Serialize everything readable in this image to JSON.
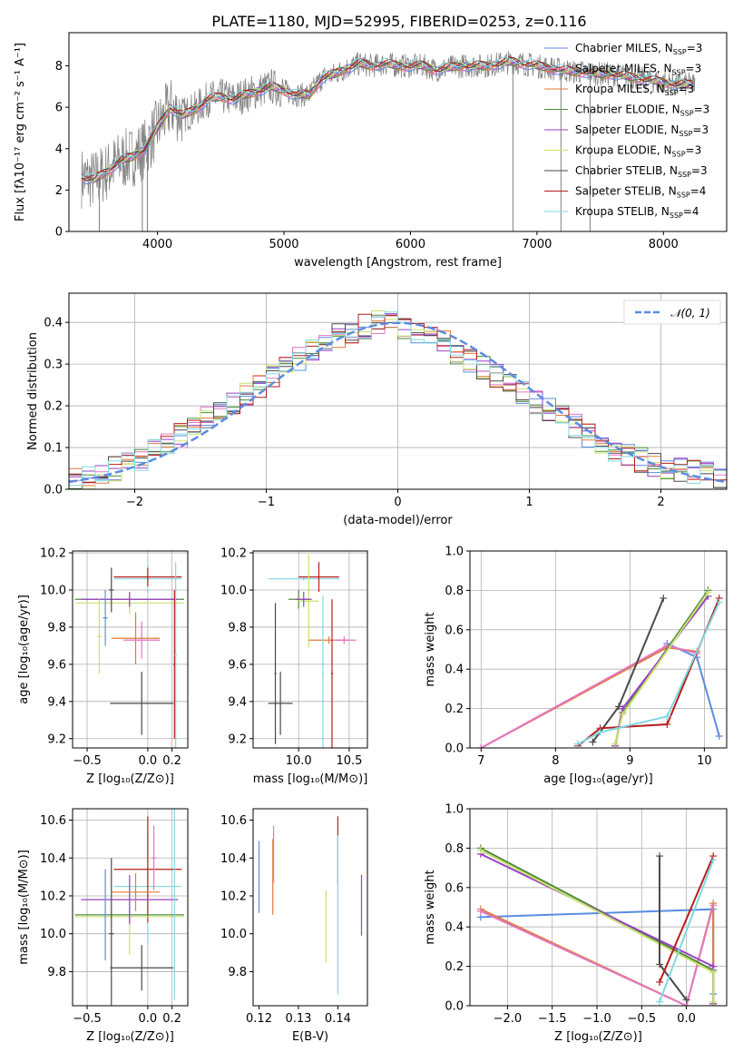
{
  "title": "PLATE=1180, MJD=52995, FIBERID=0253, z=0.116",
  "colors": {
    "cMILES": "#5b8ce0",
    "sMILES": "#e377c2",
    "kMILES": "#e07b39",
    "cELODIE": "#4e8a3e",
    "sELODIE": "#9b3fc6",
    "kELODIE": "#c7e36b",
    "cSTELIB": "#4a4a4a",
    "sSTELIB": "#b71c1c",
    "kSTELIB": "#80d8e0",
    "data": "#7f7f7f",
    "normal": "#5b8ce0"
  },
  "chart_data": [
    {
      "id": "spectrum",
      "type": "line",
      "xlabel": "wavelength [Angstrom, rest frame]",
      "ylabel": "Flux [fλ10⁻¹⁷ erg cm⁻² s⁻¹ A⁻¹]",
      "xlim": [
        3300,
        8500
      ],
      "ylim": [
        0,
        9.6
      ],
      "xticks": [
        "4000",
        "5000",
        "6000",
        "7000",
        "8000"
      ],
      "yticks": [
        "0",
        "2",
        "4",
        "6",
        "8"
      ],
      "model_x": [
        3400,
        3500,
        3600,
        3700,
        3800,
        3900,
        4000,
        4100,
        4200,
        4300,
        4400,
        4500,
        4600,
        4700,
        4800,
        4900,
        5000,
        5100,
        5200,
        5300,
        5400,
        5500,
        5600,
        5700,
        5800,
        5900,
        6000,
        6100,
        6200,
        6300,
        6400,
        6500,
        6600,
        6700,
        6800,
        6900,
        7000,
        7100,
        7200,
        7300,
        7400,
        7500,
        7600,
        7700,
        7800,
        7900,
        8000,
        8100,
        8200
      ],
      "model_y": [
        2.6,
        2.5,
        2.9,
        3.4,
        3.6,
        4.0,
        5.0,
        6.0,
        5.6,
        5.9,
        6.4,
        6.5,
        6.4,
        6.6,
        6.8,
        7.0,
        6.8,
        6.6,
        6.6,
        7.4,
        7.6,
        7.9,
        8.1,
        8.0,
        8.1,
        8.0,
        8.0,
        8.0,
        7.8,
        7.9,
        8.0,
        8.0,
        8.0,
        8.1,
        8.2,
        8.1,
        8.0,
        7.9,
        7.8,
        7.7,
        7.7,
        7.6,
        7.6,
        7.5,
        7.4,
        7.3,
        7.2,
        7.1,
        7.1
      ],
      "series": [
        {
          "name": "Chabrier MILES, N$_{SSP}$=3"
        },
        {
          "name": "Salpeter MILES, N$_{SSP}$=3"
        },
        {
          "name": "Kroupa MILES, N$_{SSP}$=3"
        },
        {
          "name": "Chabrier ELODIE, N$_{SSP}$=3"
        },
        {
          "name": "Salpeter ELODIE, N$_{SSP}$=3"
        },
        {
          "name": "Kroupa ELODIE, N$_{SSP}$=3"
        },
        {
          "name": "Chabrier STELIB, N$_{SSP}$=3"
        },
        {
          "name": "Salpeter STELIB, N$_{SSP}$=4"
        },
        {
          "name": "Kroupa STELIB, N$_{SSP}$=4"
        }
      ],
      "legend_labels": [
        [
          "Chabrier MILES, N",
          "SSP",
          "=3"
        ],
        [
          "Salpeter MILES, N",
          "SSP",
          "=3"
        ],
        [
          "Kroupa MILES, N",
          "SSP",
          "=3"
        ],
        [
          "Chabrier ELODIE, N",
          "SSP",
          "=3"
        ],
        [
          "Salpeter ELODIE, N",
          "SSP",
          "=3"
        ],
        [
          "Kroupa ELODIE, N",
          "SSP",
          "=3"
        ],
        [
          "Chabrier STELIB, N",
          "SSP",
          "=3"
        ],
        [
          "Salpeter STELIB, N",
          "SSP",
          "=4"
        ],
        [
          "Kroupa STELIB, N",
          "SSP",
          "=4"
        ]
      ],
      "legend_position": "upper-right"
    },
    {
      "id": "residuals",
      "type": "line",
      "xlabel": "(data-model)/error",
      "ylabel": "Normed distribution",
      "xlim": [
        -2.5,
        2.5
      ],
      "ylim": [
        0,
        0.47
      ],
      "xticks": [
        "−2",
        "−1",
        "0",
        "1",
        "2"
      ],
      "yticks": [
        "0.0",
        "0.1",
        "0.2",
        "0.3",
        "0.4"
      ],
      "bin_edges_start": -2.5,
      "bin_width": 0.1,
      "hist": [
        0.025,
        0.03,
        0.035,
        0.05,
        0.06,
        0.07,
        0.09,
        0.11,
        0.13,
        0.15,
        0.17,
        0.19,
        0.21,
        0.23,
        0.25,
        0.27,
        0.29,
        0.31,
        0.33,
        0.35,
        0.37,
        0.38,
        0.39,
        0.4,
        0.4,
        0.39,
        0.38,
        0.37,
        0.35,
        0.33,
        0.31,
        0.29,
        0.27,
        0.25,
        0.23,
        0.21,
        0.19,
        0.17,
        0.15,
        0.13,
        0.11,
        0.09,
        0.08,
        0.07,
        0.06,
        0.05,
        0.045,
        0.04,
        0.035,
        0.03
      ],
      "normal_label": "𝒩(0, 1)",
      "legend_position": "upper-right"
    },
    {
      "id": "age_Z",
      "type": "scatter",
      "xlabel": "Z [log₁₀(Z/Z⊙)]",
      "ylabel": "age  [log₁₀(age/yr)]",
      "xlim": [
        -0.62,
        0.33
      ],
      "ylim": [
        9.15,
        10.21
      ],
      "xticks": [
        "−0.5",
        "0.0",
        "0.2"
      ],
      "yticks": [
        "9.2",
        "9.4",
        "9.6",
        "9.8",
        "10.0",
        "10.2"
      ],
      "points": [
        {
          "c": "cSTELIB",
          "x": -0.05,
          "y": 9.39,
          "xerr": 0.26,
          "yerr": 0.17
        },
        {
          "c": "kSTELIB",
          "x": 0.0,
          "y": 10.06,
          "xerr": 0.28,
          "yerr": 0.08
        },
        {
          "c": "sSTELIB",
          "x": 0.0,
          "y": 10.07,
          "xerr": 0.28,
          "yerr": 0.05
        },
        {
          "c": "cELODIE",
          "x": -0.15,
          "y": 9.95,
          "xerr": 0.45,
          "yerr": 0.03
        },
        {
          "c": "kELODIE",
          "x": -0.15,
          "y": 9.93,
          "xerr": 0.45,
          "yerr": 0.06
        },
        {
          "c": "sELODIE",
          "x": -0.15,
          "y": 9.95,
          "xerr": 0.4,
          "yerr": 0.04
        },
        {
          "c": "cSTELIB",
          "x": -0.3,
          "y": 10.0,
          "xerr": 0.02,
          "yerr": 0.12
        },
        {
          "c": "kMILES",
          "x": -0.1,
          "y": 9.74,
          "xerr": 0.2,
          "yerr": 0.14
        },
        {
          "c": "sMILES",
          "x": -0.05,
          "y": 9.73,
          "xerr": 0.15,
          "yerr": 0.1
        },
        {
          "c": "cMILES",
          "x": -0.35,
          "y": 9.85,
          "xerr": 0.02,
          "yerr": 0.15
        },
        {
          "c": "sSTELIB",
          "x": 0.22,
          "y": 9.6,
          "xerr": 0.01,
          "yerr": 0.4
        },
        {
          "c": "kELODIE",
          "x": -0.4,
          "y": 9.75,
          "xerr": 0.02,
          "yerr": 0.2
        },
        {
          "c": "kSTELIB",
          "x": 0.23,
          "y": 9.65,
          "xerr": 0.01,
          "yerr": 0.5
        }
      ]
    },
    {
      "id": "age_mass",
      "type": "scatter",
      "xlabel": "mass [log₁₀(M/M⊙)]",
      "ylabel": "",
      "xlim": [
        9.55,
        10.68
      ],
      "ylim": [
        9.15,
        10.21
      ],
      "xticks": [
        "10.0",
        "10.5"
      ],
      "yticks": [
        "9.2",
        "9.4",
        "9.6",
        "9.8",
        "10.0",
        "10.2"
      ],
      "points": [
        {
          "c": "cSTELIB",
          "x": 9.82,
          "y": 9.39,
          "xerr": 0.12,
          "yerr": 0.17
        },
        {
          "c": "kSTELIB",
          "x": 10.05,
          "y": 10.06,
          "xerr": 0.35,
          "yerr": 0.01
        },
        {
          "c": "sSTELIB",
          "x": 10.2,
          "y": 10.07,
          "xerr": 0.2,
          "yerr": 0.08
        },
        {
          "c": "cELODIE",
          "x": 10.0,
          "y": 9.95,
          "xerr": 0.1,
          "yerr": 0.05
        },
        {
          "c": "kELODIE",
          "x": 10.1,
          "y": 9.94,
          "xerr": 0.1,
          "yerr": 0.25
        },
        {
          "c": "sELODIE",
          "x": 10.05,
          "y": 9.95,
          "xerr": 0.08,
          "yerr": 0.04
        },
        {
          "c": "kMILES",
          "x": 10.3,
          "y": 9.73,
          "xerr": 0.2,
          "yerr": 0.02
        },
        {
          "c": "sMILES",
          "x": 10.45,
          "y": 9.73,
          "xerr": 0.12,
          "yerr": 0.02
        },
        {
          "c": "kSTELIB",
          "x": 10.24,
          "y": 9.55,
          "xerr": 0.01,
          "yerr": 0.42
        },
        {
          "c": "sSTELIB",
          "x": 10.33,
          "y": 9.55,
          "xerr": 0.01,
          "yerr": 0.4
        },
        {
          "c": "cSTELIB",
          "x": 9.77,
          "y": 9.55,
          "xerr": 0.01,
          "yerr": 0.38
        }
      ]
    },
    {
      "id": "weight_age",
      "type": "line",
      "xlabel": "age  [log₁₀(age/yr)]",
      "ylabel": "mass weight",
      "xlim": [
        6.85,
        10.3
      ],
      "ylim": [
        0,
        1.0
      ],
      "xticks": [
        "7",
        "8",
        "9",
        "10"
      ],
      "yticks": [
        "0.0",
        "0.2",
        "0.4",
        "0.6",
        "0.8",
        "1.0"
      ],
      "series": [
        {
          "c": "cMILES",
          "x": [
            9.5,
            9.9,
            10.2
          ],
          "y": [
            0.53,
            0.46,
            0.06
          ]
        },
        {
          "c": "kMILES",
          "x": [
            7.0,
            9.5,
            9.9
          ],
          "y": [
            0.0,
            0.51,
            0.49
          ]
        },
        {
          "c": "sMILES",
          "x": [
            7.0,
            9.5,
            9.9
          ],
          "y": [
            0.0,
            0.52,
            0.48
          ]
        },
        {
          "c": "cELODIE",
          "x": [
            8.8,
            8.9,
            10.05
          ],
          "y": [
            0.01,
            0.18,
            0.8
          ]
        },
        {
          "c": "sELODIE",
          "x": [
            8.8,
            8.9,
            10.05
          ],
          "y": [
            0.01,
            0.2,
            0.77
          ]
        },
        {
          "c": "kELODIE",
          "x": [
            8.8,
            8.9,
            10.05
          ],
          "y": [
            0.02,
            0.17,
            0.79
          ]
        },
        {
          "c": "cSTELIB",
          "x": [
            8.5,
            8.85,
            9.45
          ],
          "y": [
            0.03,
            0.21,
            0.76
          ]
        },
        {
          "c": "sSTELIB",
          "x": [
            8.3,
            8.6,
            9.5,
            10.2
          ],
          "y": [
            0.01,
            0.1,
            0.12,
            0.76
          ]
        },
        {
          "c": "kSTELIB",
          "x": [
            8.3,
            8.6,
            9.5,
            10.2
          ],
          "y": [
            0.02,
            0.08,
            0.16,
            0.74
          ]
        }
      ]
    },
    {
      "id": "mass_Z",
      "type": "scatter",
      "xlabel": "Z [log₁₀(Z/Z⊙)]",
      "ylabel": "mass [log₁₀(M/M⊙)]",
      "xlim": [
        -0.62,
        0.33
      ],
      "ylim": [
        9.62,
        10.66
      ],
      "xticks": [
        "−0.5",
        "0.0",
        "0.2"
      ],
      "yticks": [
        "9.8",
        "10.0",
        "10.2",
        "10.4",
        "10.6"
      ],
      "points": [
        {
          "c": "cSTELIB",
          "x": -0.05,
          "y": 9.82,
          "xerr": 0.26,
          "yerr": 0.12
        },
        {
          "c": "kSTELIB",
          "x": 0.0,
          "y": 10.25,
          "xerr": 0.28,
          "yerr": 0.3
        },
        {
          "c": "sSTELIB",
          "x": 0.0,
          "y": 10.34,
          "xerr": 0.28,
          "yerr": 0.28
        },
        {
          "c": "cELODIE",
          "x": -0.15,
          "y": 10.1,
          "xerr": 0.45,
          "yerr": 0.04
        },
        {
          "c": "kELODIE",
          "x": -0.15,
          "y": 10.09,
          "xerr": 0.45,
          "yerr": 0.2
        },
        {
          "c": "sELODIE",
          "x": -0.15,
          "y": 10.18,
          "xerr": 0.4,
          "yerr": 0.13
        },
        {
          "c": "kMILES",
          "x": -0.1,
          "y": 10.22,
          "xerr": 0.2,
          "yerr": 0.1
        },
        {
          "c": "sMILES",
          "x": 0.05,
          "y": 10.4,
          "xerr": 0.02,
          "yerr": 0.17
        },
        {
          "c": "cMILES",
          "x": -0.35,
          "y": 10.1,
          "xerr": 0.02,
          "yerr": 0.24
        },
        {
          "c": "cSTELIB",
          "x": -0.3,
          "y": 10.0,
          "xerr": 0.02,
          "yerr": 0.4
        },
        {
          "c": "kSTELIB",
          "x": 0.22,
          "y": 10.2,
          "xerr": 0.01,
          "yerr": 0.55
        }
      ]
    },
    {
      "id": "mass_ebv",
      "type": "scatter",
      "xlabel": "E(B-V)",
      "ylabel": "",
      "xlim": [
        0.1185,
        0.1475
      ],
      "ylim": [
        9.62,
        10.66
      ],
      "xticks": [
        "0.12",
        "0.13",
        "0.14"
      ],
      "yticks": [
        "9.8",
        "10.0",
        "10.2",
        "10.4",
        "10.6"
      ],
      "points": [
        {
          "c": "cMILES",
          "x": 0.12,
          "y": 10.3,
          "yerr": 0.19
        },
        {
          "c": "kMILES",
          "x": 0.1235,
          "y": 10.3,
          "yerr": 0.2
        },
        {
          "c": "sMILES",
          "x": 0.1237,
          "y": 10.42,
          "yerr": 0.15
        },
        {
          "c": "kELODIE",
          "x": 0.137,
          "y": 10.04,
          "yerr": 0.19
        },
        {
          "c": "sSTELIB",
          "x": 0.14,
          "y": 10.44,
          "yerr": 0.18
        },
        {
          "c": "kSTELIB",
          "x": 0.14,
          "y": 10.1,
          "yerr": 0.42
        },
        {
          "c": "sELODIE",
          "x": 0.146,
          "y": 10.15,
          "yerr": 0.16
        }
      ]
    },
    {
      "id": "weight_Z",
      "type": "line",
      "xlabel": "Z [log₁₀(Z/Z⊙)]",
      "ylabel": "mass weight",
      "xlim": [
        -2.42,
        0.45
      ],
      "ylim": [
        0,
        1.0
      ],
      "xticks": [
        "−2.0",
        "−1.5",
        "−1.0",
        "−0.5",
        "0.0"
      ],
      "yticks": [
        "0.0",
        "0.2",
        "0.4",
        "0.6",
        "0.8",
        "1.0"
      ],
      "series": [
        {
          "c": "cMILES",
          "x": [
            -2.3,
            0.3,
            0.3
          ],
          "y": [
            0.45,
            0.49,
            0.06
          ]
        },
        {
          "c": "kMILES",
          "x": [
            -2.3,
            0.0,
            0.3,
            0.3
          ],
          "y": [
            0.49,
            0.0,
            0.52,
            0.0
          ]
        },
        {
          "c": "sMILES",
          "x": [
            -2.3,
            0.0,
            0.3
          ],
          "y": [
            0.48,
            0.0,
            0.51
          ]
        },
        {
          "c": "cELODIE",
          "x": [
            -2.3,
            0.3,
            0.3
          ],
          "y": [
            0.8,
            0.18,
            0.01
          ]
        },
        {
          "c": "sELODIE",
          "x": [
            -2.3,
            0.3,
            0.3
          ],
          "y": [
            0.77,
            0.2,
            0.01
          ]
        },
        {
          "c": "kELODIE",
          "x": [
            -2.3,
            0.3,
            0.3
          ],
          "y": [
            0.79,
            0.17,
            0.02
          ]
        },
        {
          "c": "cSTELIB",
          "x": [
            -0.3,
            -0.3,
            0.0
          ],
          "y": [
            0.76,
            0.21,
            0.03
          ]
        },
        {
          "c": "sSTELIB",
          "x": [
            -0.3,
            0.3
          ],
          "y": [
            0.12,
            0.76
          ]
        },
        {
          "c": "kSTELIB",
          "x": [
            -0.3,
            0.3
          ],
          "y": [
            0.02,
            0.74
          ]
        }
      ]
    }
  ]
}
